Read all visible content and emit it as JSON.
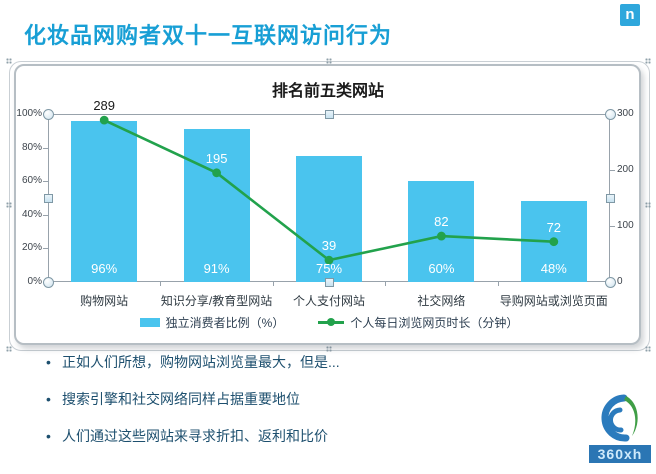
{
  "header": {
    "title": "化妆品网购者双十一互联网访问行为",
    "logo_letter": "n"
  },
  "chart": {
    "title": "排名前五类网站",
    "left_axis_labels": [
      "100%",
      "80%",
      "60%",
      "40%",
      "20%",
      "0%"
    ],
    "right_axis_labels": [
      "300",
      "200",
      "100",
      "0"
    ]
  },
  "chart_data": {
    "type": "bar",
    "subtype": "bar-line-combo",
    "title": "排名前五类网站",
    "categories": [
      "购物网站",
      "知识分享/教育型网站",
      "个人支付网站",
      "社交网络",
      "导购网站或浏览页面"
    ],
    "series": [
      {
        "name": "独立消费者比例（%）",
        "type": "bar",
        "axis": "left",
        "values": [
          96,
          91,
          75,
          60,
          48
        ],
        "labels": [
          "96%",
          "91%",
          "75%",
          "60%",
          "48%"
        ],
        "color": "#4ac4ee"
      },
      {
        "name": "个人每日浏览网页时长（分钟）",
        "type": "line",
        "axis": "right",
        "values": [
          289,
          195,
          39,
          82,
          72
        ],
        "labels": [
          "289",
          "195",
          "39",
          "82",
          "72"
        ],
        "color": "#22a24c"
      }
    ],
    "left_axis": {
      "min": 0,
      "max": 100,
      "step": 20,
      "unit": "%"
    },
    "right_axis": {
      "min": 0,
      "max": 300,
      "step": 100
    },
    "grid": false,
    "legend_position": "bottom"
  },
  "bullets": [
    "正如人们所想，购物网站浏览量最大，但是...",
    "搜索引擎和社交网络同样占据重要地位",
    "人们通过这些网站来寻求折扣、返利和比价"
  ],
  "footer_logo": {
    "text": "360xh"
  },
  "colors": {
    "accent_title": "#189fd5",
    "bar": "#4ac4ee",
    "line": "#22a24c",
    "bullet_text": "#1d4f6e",
    "nielsen_blue": "#2ea7dc",
    "banner_blue": "#2b76b4"
  }
}
